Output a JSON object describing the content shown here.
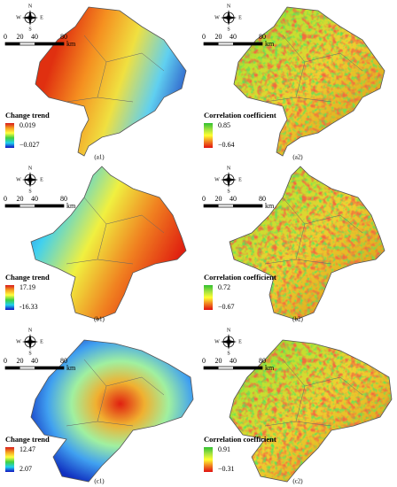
{
  "compass": {
    "n": "N",
    "s": "S",
    "w": "W",
    "e": "E"
  },
  "scale": {
    "ticks": [
      "0",
      "20",
      "40",
      "80"
    ],
    "unit": "km"
  },
  "panels": [
    {
      "label": "(a1)",
      "legend_title": "Change trend",
      "max": "0.019",
      "min": "−0.027"
    },
    {
      "label": "(a2)",
      "legend_title": "Correlation coefficient",
      "max": "0.85",
      "min": "−0.64"
    },
    {
      "label": "(b1)",
      "legend_title": "Change trend",
      "max": "17.19",
      "min": "-16.33"
    },
    {
      "label": "(b2)",
      "legend_title": "Correlation coefficient",
      "max": "0.72",
      "min": "−0.67"
    },
    {
      "label": "(c1)",
      "legend_title": "Change trend",
      "max": "12.47",
      "min": "2.07"
    },
    {
      "label": "(c2)",
      "legend_title": "Correlation coefficient",
      "max": "0.91",
      "min": "−0.31"
    }
  ]
}
